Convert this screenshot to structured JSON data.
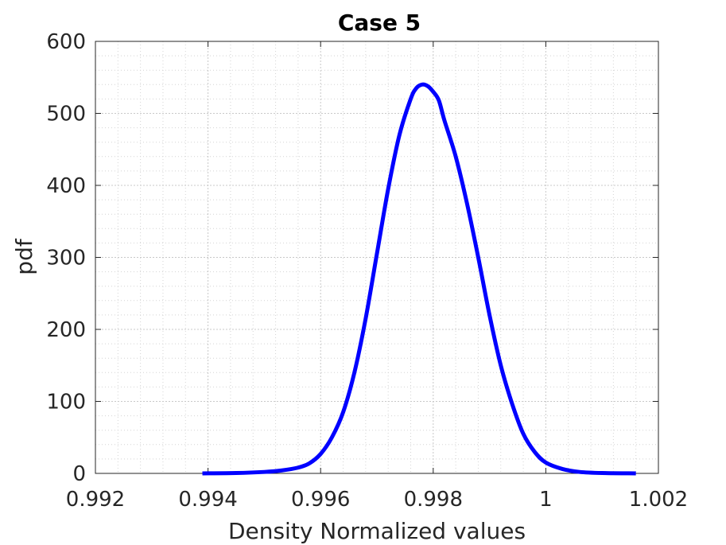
{
  "chart_data": {
    "type": "line",
    "title": "Case 5",
    "xlabel": "Density Normalized values",
    "ylabel": "pdf",
    "xlim": [
      0.992,
      1.002
    ],
    "ylim": [
      0,
      600
    ],
    "xticks": [
      0.992,
      0.994,
      0.996,
      0.998,
      1.0,
      1.002
    ],
    "xtick_labels": [
      "0.992",
      "0.994",
      "0.996",
      "0.998",
      "1",
      "1.002"
    ],
    "yticks": [
      0,
      100,
      200,
      300,
      400,
      500,
      600
    ],
    "ytick_labels": [
      "0",
      "100",
      "200",
      "300",
      "400",
      "500",
      "600"
    ],
    "grid": true,
    "minor_grid": true,
    "line_color": "#0000ff",
    "series": [
      {
        "x": [
          0.9939,
          0.9945,
          0.995,
          0.9953,
          0.9956,
          0.9958,
          0.996,
          0.9962,
          0.9964,
          0.9966,
          0.9968,
          0.997,
          0.9972,
          0.9974,
          0.9976,
          0.9977,
          0.9978,
          0.9979,
          0.998,
          0.9981,
          0.9982,
          0.9984,
          0.9986,
          0.9988,
          0.999,
          0.9992,
          0.9994,
          0.9996,
          0.9998,
          1.0,
          1.0003,
          1.0006,
          1.001,
          1.0016
        ],
        "y": [
          0,
          0.5,
          2,
          4,
          8,
          14,
          27,
          50,
          85,
          140,
          215,
          305,
          395,
          470,
          520,
          535,
          540,
          538,
          530,
          518,
          490,
          440,
          375,
          300,
          220,
          150,
          97,
          55,
          30,
          15,
          6,
          2,
          0.5,
          0
        ]
      }
    ]
  }
}
